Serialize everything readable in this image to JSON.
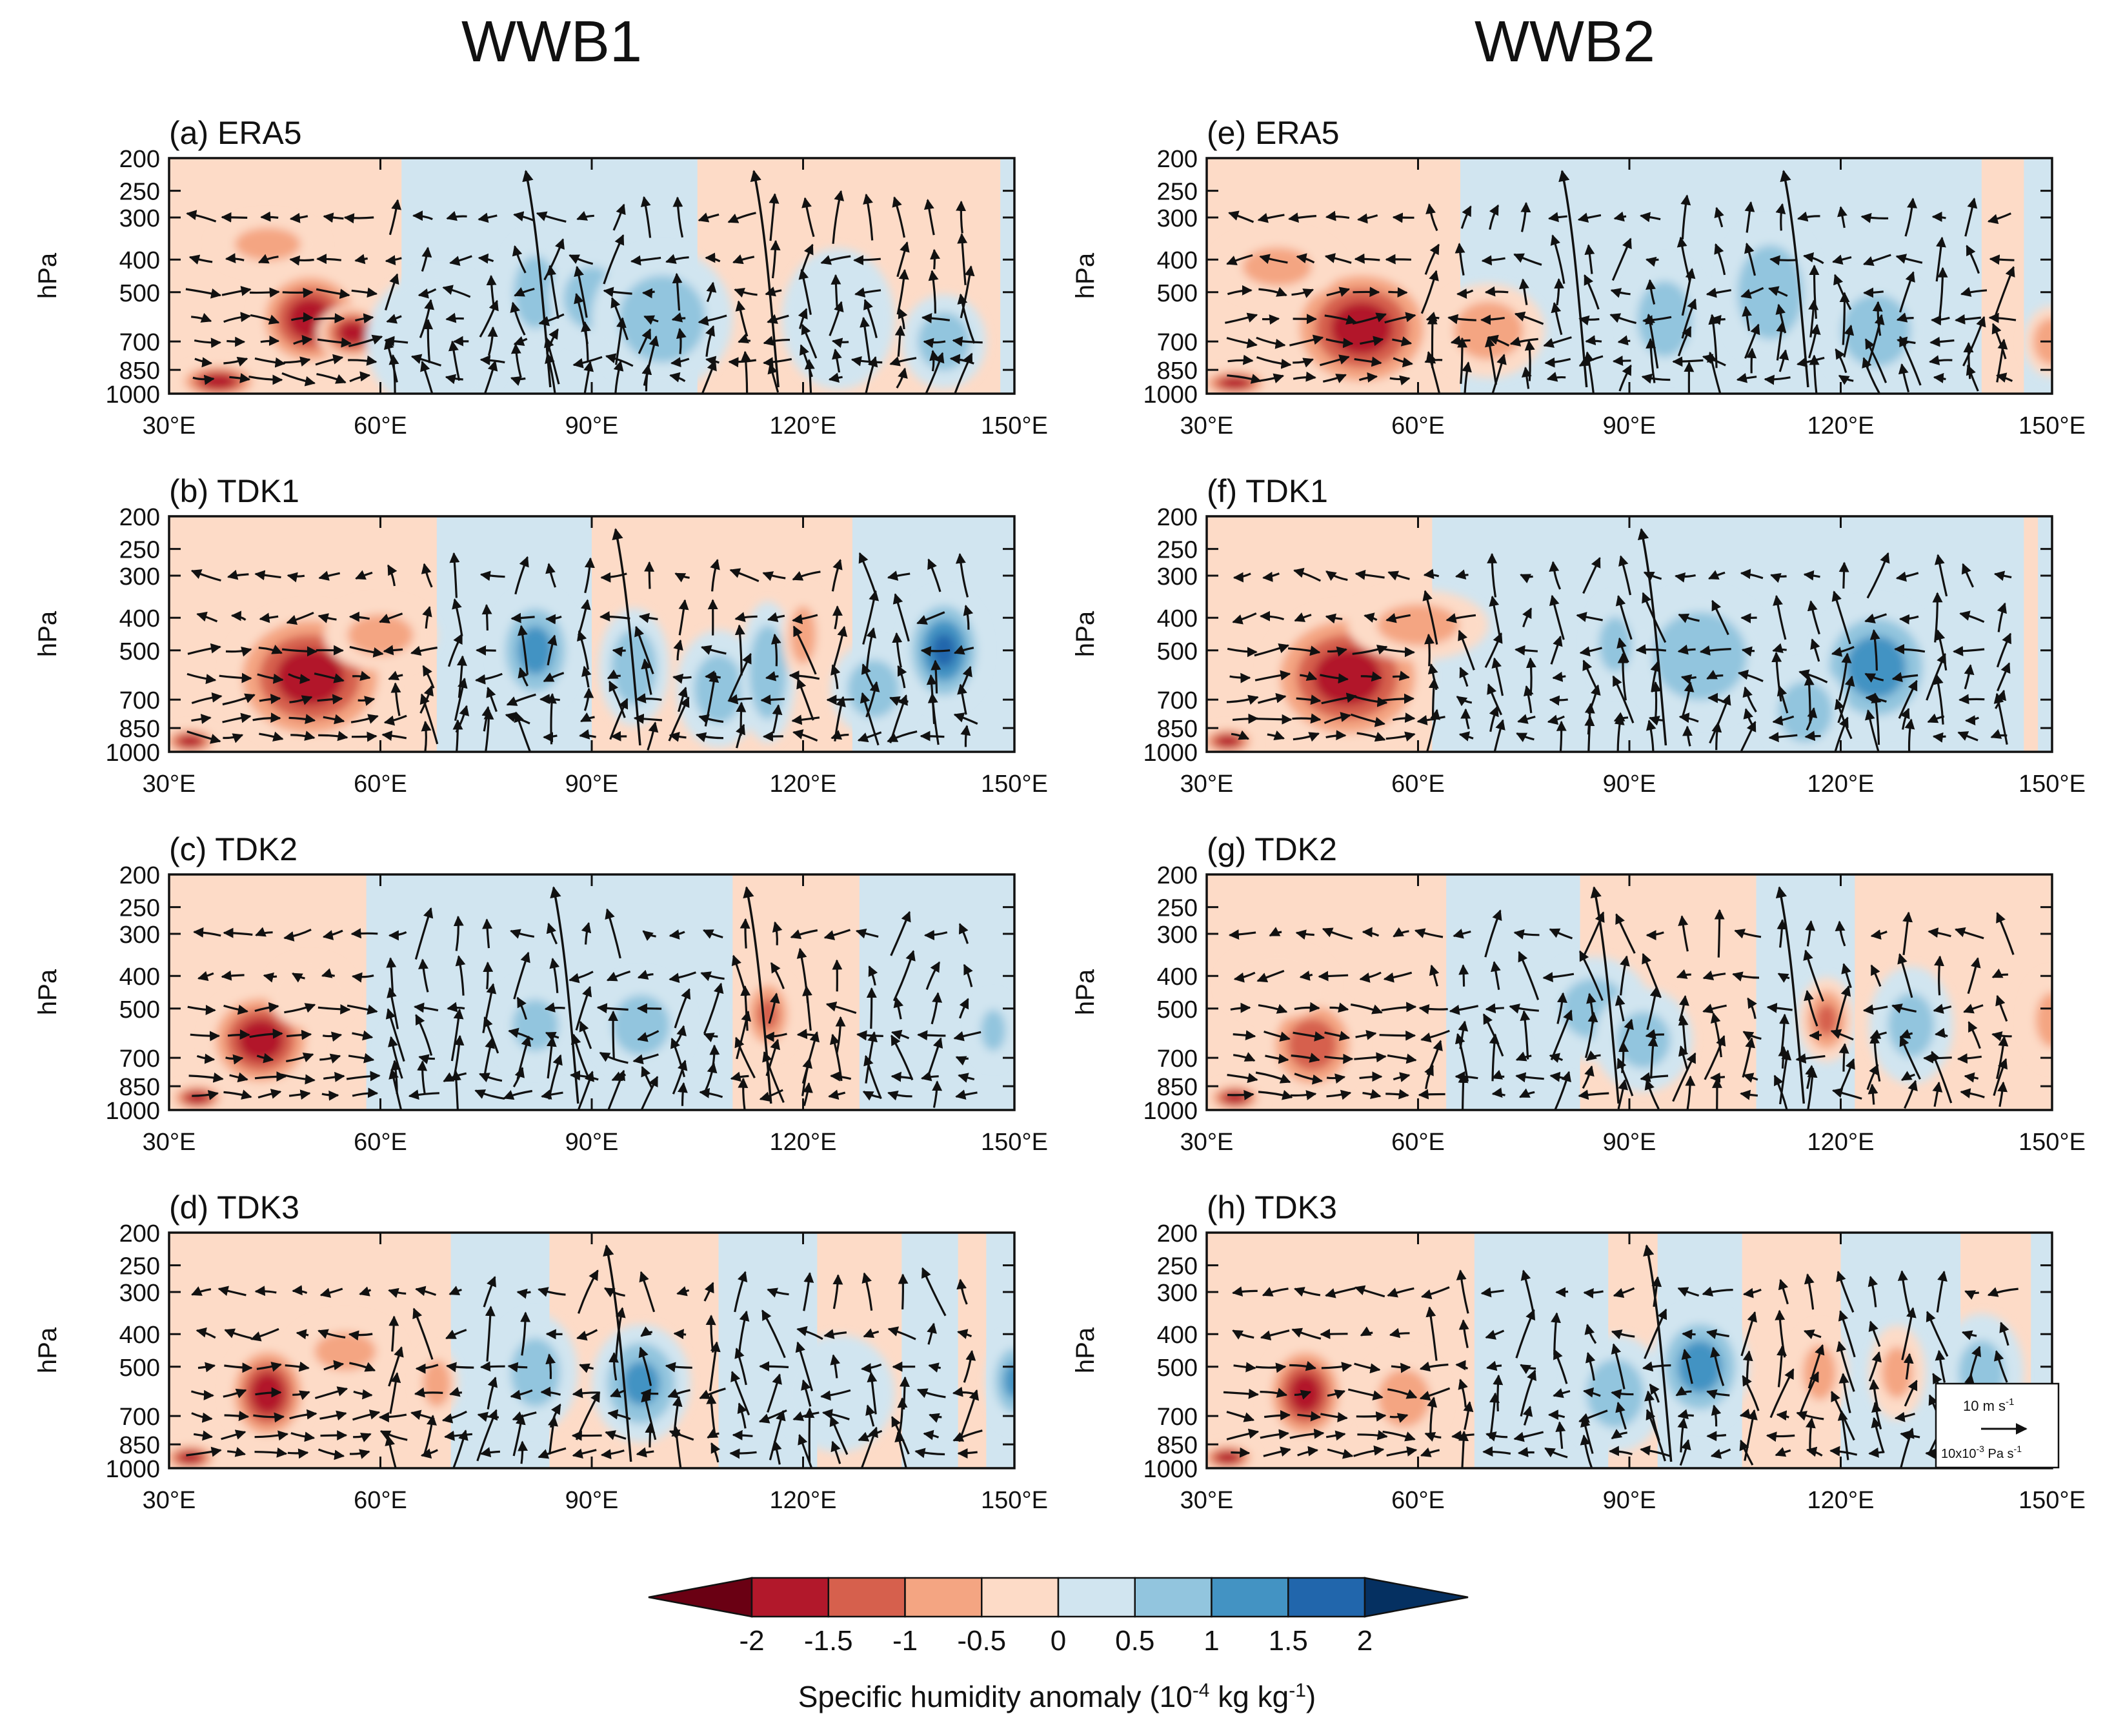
{
  "columns": [
    {
      "title": "WWB1",
      "panels": [
        {
          "label": "(a) ERA5"
        },
        {
          "label": "(b) TDK1"
        },
        {
          "label": "(c) TDK2"
        },
        {
          "label": "(d) TDK3"
        }
      ]
    },
    {
      "title": "WWB2",
      "panels": [
        {
          "label": "(e) ERA5"
        },
        {
          "label": "(f) TDK1"
        },
        {
          "label": "(g) TDK2"
        },
        {
          "label": "(h) TDK3"
        }
      ]
    }
  ],
  "chart_data": {
    "type": "heatmap",
    "description_kind": "longitude-pressure cross sections with wind vectors",
    "ylabel": "hPa",
    "y_ticks": [
      200,
      250,
      300,
      400,
      500,
      700,
      850,
      1000
    ],
    "x_ticks": [
      "30°E",
      "60°E",
      "90°E",
      "120°E",
      "150°E"
    ],
    "x_tick_values": [
      30,
      60,
      90,
      120,
      150
    ],
    "xlim": [
      30,
      150
    ],
    "ylim": [
      1000,
      200
    ],
    "colorbar": {
      "levels": [
        -2,
        -1.5,
        -1,
        -0.5,
        0,
        0.5,
        1,
        1.5,
        2
      ],
      "level_labels": [
        "-2",
        "-1.5",
        "-1",
        "-0.5",
        "0",
        "0.5",
        "1",
        "1.5",
        "2"
      ],
      "colors": [
        "#6a0013",
        "#b2182b",
        "#d6604d",
        "#f4a582",
        "#fddbc7",
        "#d1e5f0",
        "#92c5de",
        "#4393c3",
        "#2166ac",
        "#053061"
      ],
      "title_main": "Specific humidity  anomaly (10",
      "title_exp": "-4",
      "title_tail": " kg kg",
      "title_exp2": "-1",
      "title_close": ")"
    },
    "reference_vector": {
      "upper_label": "10 m s",
      "upper_exp": "-1",
      "lower_label": "10x10",
      "lower_exp": "-3",
      "lower_unit": " Pa s",
      "lower_exp2": "-1"
    }
  }
}
